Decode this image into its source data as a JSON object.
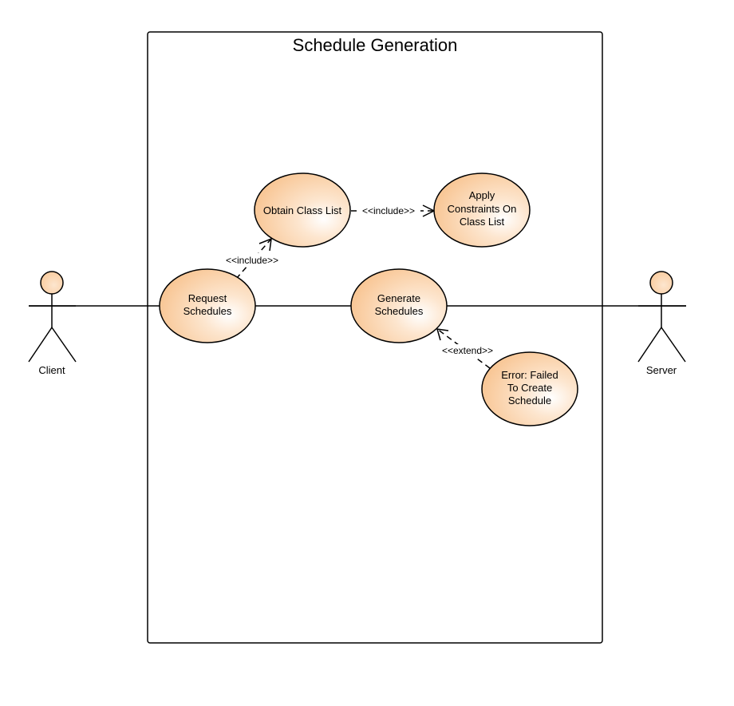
{
  "diagram": {
    "title": "Schedule Generation",
    "actors": {
      "client": {
        "label": "Client"
      },
      "server": {
        "label": "Server"
      }
    },
    "use_cases": {
      "obtain": {
        "lines": [
          "Obtain Class List"
        ]
      },
      "apply": {
        "lines": [
          "Apply",
          "Constraints On",
          "Class List"
        ]
      },
      "request": {
        "lines": [
          "Request",
          "Schedules"
        ]
      },
      "generate": {
        "lines": [
          "Generate",
          "Schedules"
        ]
      },
      "error": {
        "lines": [
          "Error: Failed",
          "To Create",
          "Schedule"
        ]
      }
    },
    "relations": {
      "include_request_obtain": "<<include>>",
      "include_obtain_apply": "<<include>>",
      "extend_error_generate": "<<extend>>"
    },
    "colors": {
      "usecase_fill": "#f9c999",
      "usecase_highlight": "#ffffff",
      "stroke": "#000000"
    }
  }
}
